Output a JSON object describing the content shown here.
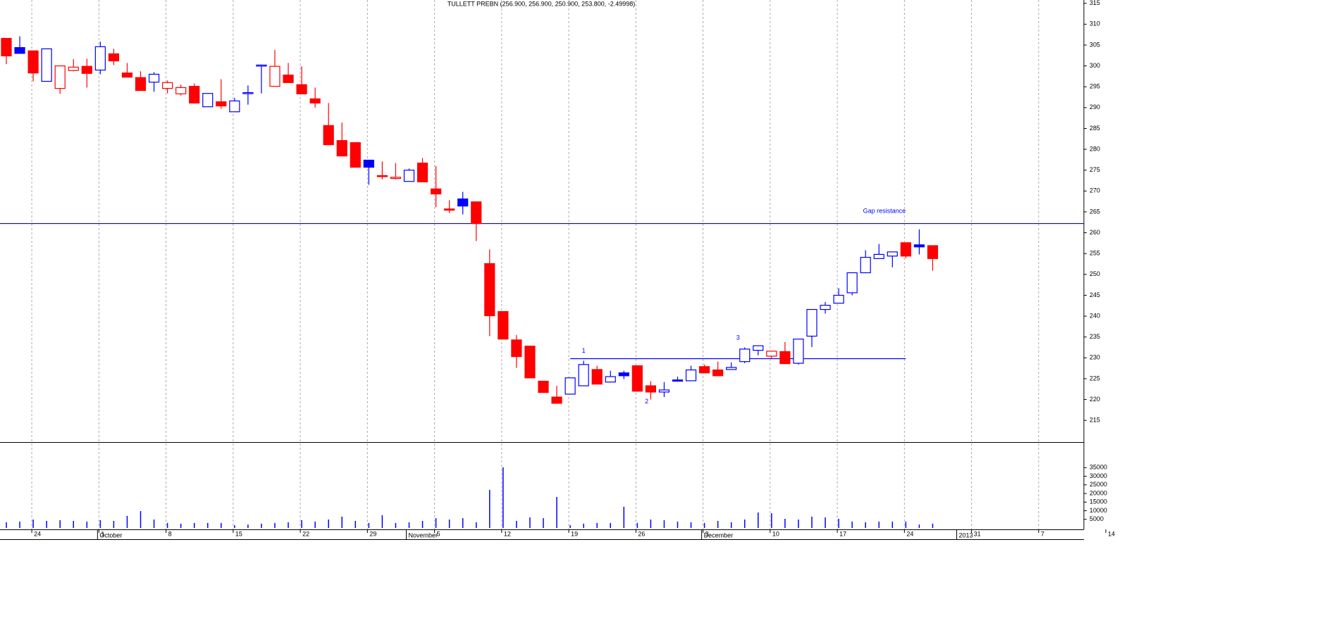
{
  "chart_data": [
    {
      "type": "candlestick",
      "title": "TULLETT PREBN (256.900, 256.900, 250.900, 253.800, -2.49998)",
      "categories": [
        null,
        null,
        "24",
        null,
        null,
        null,
        null,
        "1",
        null,
        null,
        null,
        null,
        "8",
        null,
        null,
        null,
        null,
        "15",
        null,
        null,
        null,
        null,
        "22",
        null,
        null,
        null,
        null,
        "29",
        null,
        null,
        null,
        null,
        "5",
        null,
        null,
        null,
        null,
        "12",
        null,
        null,
        null,
        null,
        "19",
        null,
        null,
        null,
        null,
        "26",
        null,
        null,
        null,
        null,
        "3",
        null,
        null,
        null,
        null,
        "10",
        null,
        null,
        null,
        null,
        "17",
        null,
        null,
        null,
        null,
        "24",
        null,
        null,
        null,
        null,
        "31",
        null,
        null,
        null,
        null,
        "7",
        null,
        null,
        null,
        null,
        "14"
      ],
      "open": [
        306.6,
        304.4,
        303.6,
        296.3,
        294.6,
        298.9,
        299.9,
        299,
        302.9,
        298.3,
        297.2,
        296.1,
        294.6,
        293.3,
        295.1,
        290.2,
        291.4,
        289,
        293.4,
        300,
        295.1,
        297.8,
        295.5,
        292.1,
        285.7,
        282.1,
        281.6,
        277.4,
        273.7,
        273,
        272.3,
        276.7,
        270.5,
        265.7,
        268.1,
        267.4,
        252.6,
        241.1,
        234.3,
        232.8,
        224.4,
        220.6,
        221.3,
        223.3,
        227.2,
        224.2,
        226.4,
        228.1,
        223.3,
        221.8,
        224.7,
        224.5,
        227.9,
        227.1,
        227.2,
        229.1,
        231.8,
        230.4,
        231.5,
        228.7,
        235.2,
        241.6,
        243.1,
        245.6,
        250.4,
        253.8,
        254.4,
        257.6,
        257.1,
        256.9,
        null,
        null,
        null,
        null,
        null,
        null,
        null,
        null,
        null,
        null,
        null,
        null,
        null
      ],
      "high": [
        306.6,
        307.1,
        303.6,
        304.1,
        300,
        301.6,
        301.7,
        305.8,
        304.1,
        300.7,
        298.7,
        298.5,
        296.5,
        295.5,
        295.8,
        293.4,
        296.8,
        292.3,
        295.3,
        300.2,
        303.8,
        300.7,
        299.9,
        294.8,
        291.1,
        286.4,
        281.6,
        277.4,
        277.1,
        276.7,
        275.4,
        277.9,
        276,
        267.8,
        269.8,
        267.4,
        256,
        241.1,
        235.5,
        232.8,
        224.4,
        223.3,
        225.2,
        229.3,
        228.1,
        226.9,
        226.9,
        228.1,
        224.4,
        224.2,
        225.5,
        228.1,
        228.4,
        229.1,
        228.9,
        232.5,
        232.9,
        231.6,
        233.8,
        234.5,
        241.6,
        243.4,
        246.7,
        250.4,
        255.8,
        257.3,
        255.4,
        257.6,
        260.8,
        256.9,
        null,
        null,
        null,
        null,
        null,
        null,
        null,
        null,
        null,
        null,
        null,
        null,
        null
      ],
      "low": [
        300.4,
        302.9,
        296.3,
        296.3,
        293.3,
        298.7,
        294.8,
        298,
        300.2,
        297.3,
        294.1,
        293.8,
        293.4,
        292.9,
        291.1,
        290.2,
        289.7,
        289,
        290.7,
        293.4,
        295.1,
        296,
        293.3,
        290,
        281.1,
        278.4,
        275.7,
        271.5,
        272.8,
        272.8,
        272.3,
        272.2,
        266.1,
        264.7,
        264.4,
        258,
        235.2,
        234.5,
        227.6,
        225.2,
        221.7,
        219,
        221.3,
        223.3,
        223.7,
        224.2,
        224.9,
        222,
        220,
        220.6,
        224.4,
        224.5,
        226.4,
        225.7,
        227.2,
        228.7,
        230.6,
        229.8,
        228.6,
        228.4,
        232.6,
        240.6,
        243.1,
        245,
        250.4,
        253.8,
        251.7,
        253.9,
        254.8,
        250.9,
        null,
        null,
        null,
        null,
        null,
        null,
        null,
        null,
        null,
        null,
        null,
        null,
        null
      ],
      "close": [
        302.4,
        303,
        298.3,
        304.1,
        300,
        299.7,
        298.2,
        304.6,
        301.2,
        297.3,
        294.1,
        298,
        296,
        294.8,
        291.1,
        293.4,
        290.4,
        291.6,
        293.6,
        300.2,
        299.9,
        296,
        293.3,
        291.1,
        281.1,
        278.4,
        275.7,
        275.7,
        273.5,
        273.3,
        275,
        272.2,
        269.3,
        265.4,
        266.4,
        262.2,
        240.1,
        234.5,
        230.3,
        225.2,
        221.7,
        219.1,
        225.2,
        228.4,
        223.7,
        225.5,
        225.7,
        222,
        221.8,
        222.3,
        224.4,
        227.1,
        226.4,
        225.7,
        227.7,
        232.1,
        232.9,
        231.6,
        228.6,
        234.5,
        241.6,
        242.6,
        245,
        250.4,
        254.1,
        254.8,
        255.4,
        254.4,
        256.6,
        253.8,
        null,
        null,
        null,
        null,
        null,
        null,
        null,
        null,
        null,
        null,
        null,
        null,
        null
      ],
      "up_color": "#0000ff",
      "down_color": "#ff0000",
      "ylim": [
        209.8,
        315.8
      ],
      "yticks": [
        215,
        220,
        225,
        230,
        235,
        240,
        245,
        250,
        255,
        260,
        265,
        270,
        275,
        280,
        285,
        290,
        295,
        300,
        305,
        310,
        315
      ],
      "months": [
        {
          "label": "October",
          "index": 7
        },
        {
          "label": "November",
          "index": 30
        },
        {
          "label": "December",
          "index": 52
        },
        {
          "label": "2013",
          "index": 71
        }
      ],
      "lines": [
        {
          "y": 262.2
        },
        {
          "y": 229.8,
          "from": 42,
          "to": 67
        }
      ],
      "annotations": [
        {
          "text": "Gap resistance",
          "x": 65.4,
          "y": 265.1
        },
        {
          "text": "1",
          "x": 43,
          "y": 231.6
        },
        {
          "text": "2",
          "x": 47.7,
          "y": 219.5
        },
        {
          "text": "3",
          "x": 54.5,
          "y": 234.8
        }
      ]
    },
    {
      "type": "bar",
      "color": "#0000ff",
      "values": [
        3300,
        3700,
        4900,
        4100,
        4500,
        4100,
        3700,
        4500,
        4100,
        7000,
        9800,
        4900,
        2900,
        2500,
        2900,
        2900,
        2900,
        1600,
        2000,
        2500,
        2900,
        3300,
        4500,
        3700,
        4900,
        6600,
        4100,
        2900,
        7400,
        2900,
        3300,
        4100,
        5700,
        4900,
        5700,
        3300,
        22100,
        35200,
        4100,
        6100,
        5700,
        18000,
        1600,
        2500,
        2900,
        2900,
        12300,
        2900,
        4900,
        4500,
        3700,
        3300,
        2900,
        4100,
        3300,
        4900,
        9000,
        8600,
        5300,
        4900,
        6600,
        6100,
        5300,
        3700,
        3300,
        3700,
        3700,
        3700,
        2000,
        2500,
        null,
        null,
        null,
        null,
        null,
        null,
        null,
        null,
        null,
        null,
        null,
        null,
        null
      ],
      "ylim": [
        0,
        49000
      ],
      "yticks": [
        5000,
        10000,
        15000,
        20000,
        25000,
        30000,
        35000
      ]
    }
  ]
}
